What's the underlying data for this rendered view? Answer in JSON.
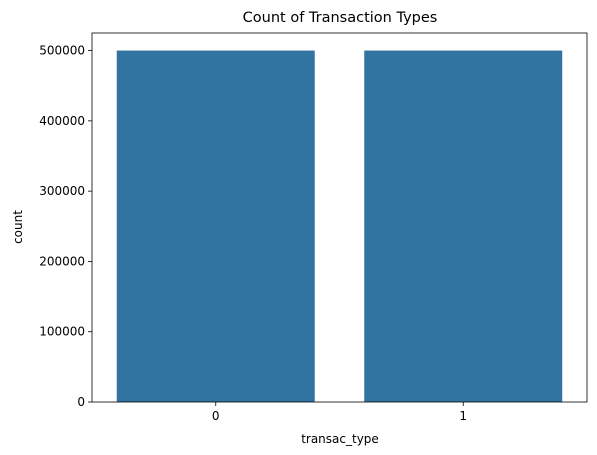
{
  "chart_data": {
    "type": "bar",
    "title": "Count of Transaction Types",
    "xlabel": "transac_type",
    "ylabel": "count",
    "categories": [
      "0",
      "1"
    ],
    "values": [
      500000,
      500000
    ],
    "ylim": [
      0,
      525000
    ],
    "yticks": [
      "0",
      "100000",
      "200000",
      "300000",
      "400000",
      "500000"
    ],
    "grid": false,
    "bar_color": "#3274a1"
  }
}
